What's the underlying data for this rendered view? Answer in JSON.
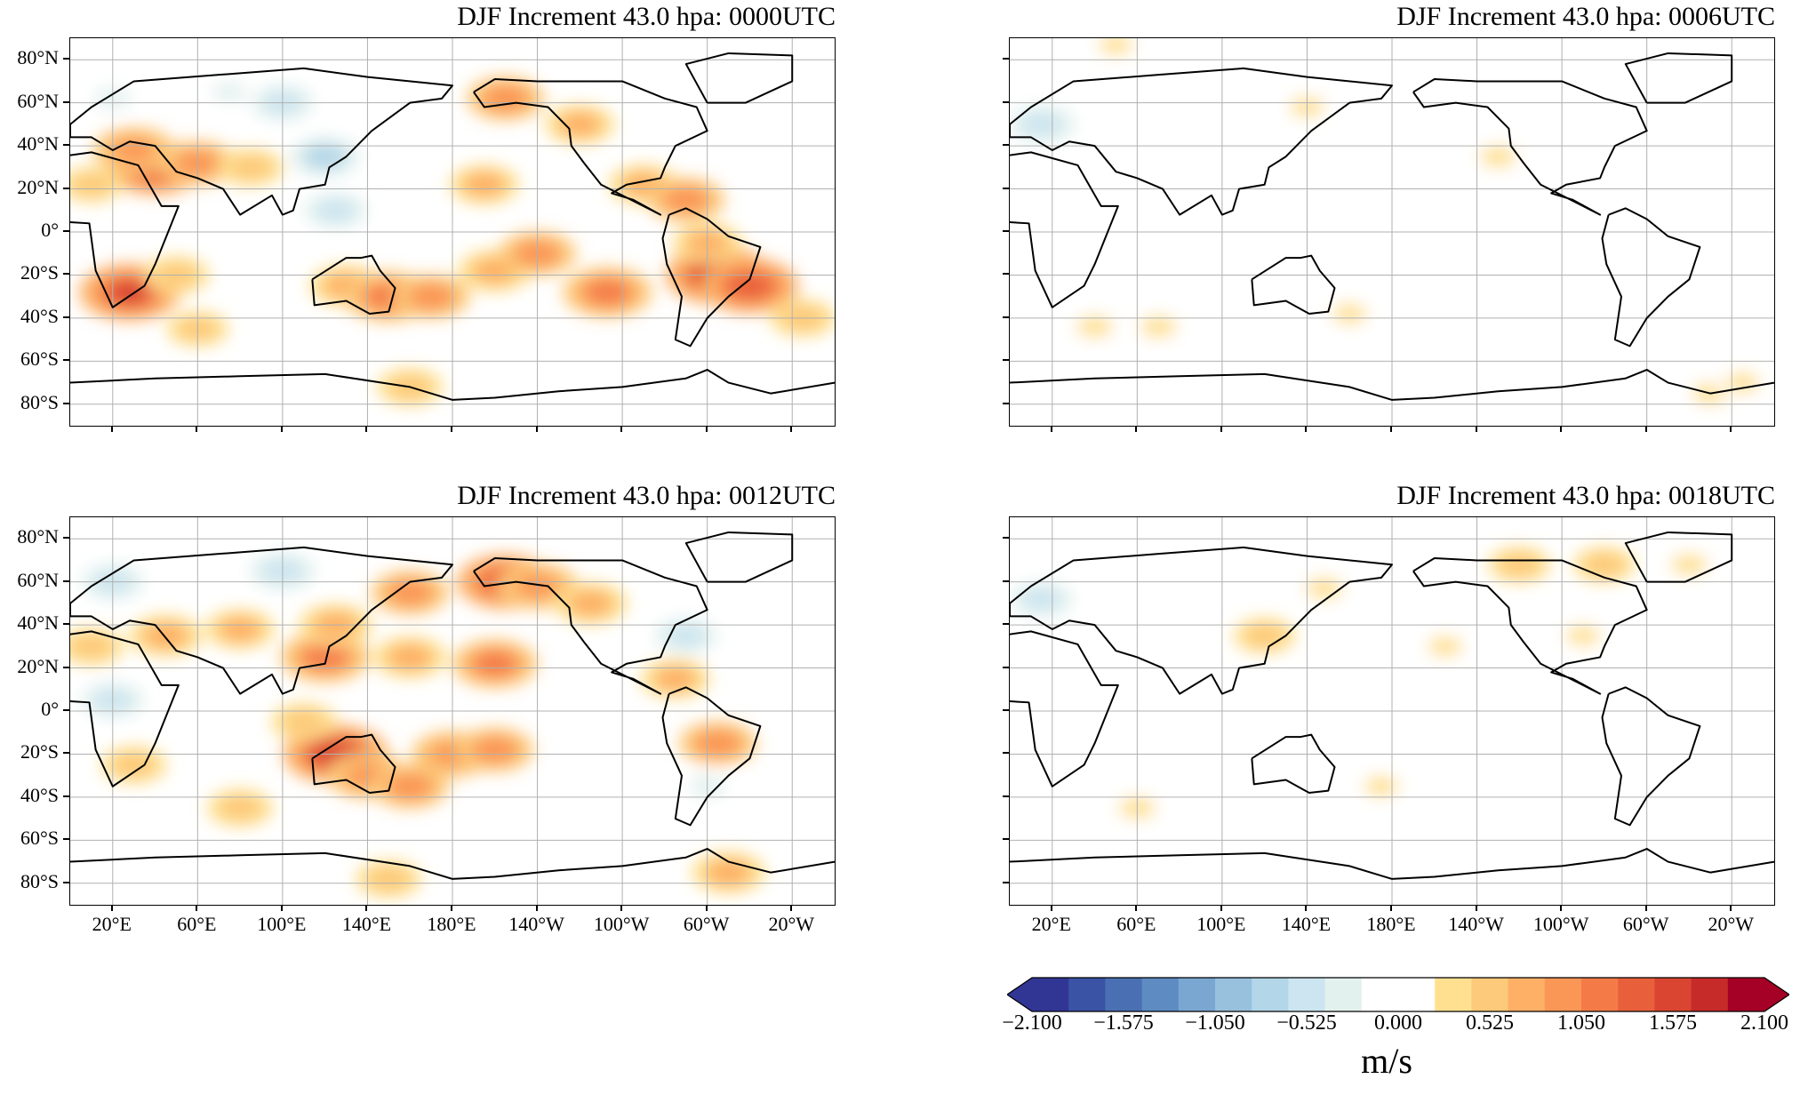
{
  "panels": [
    {
      "title": "DJF Increment 43.0 hpa: 0000UTC",
      "show_lat_labels": true,
      "show_lon_labels": false,
      "blobs": [
        {
          "lon": 40,
          "lat": 30,
          "v": 1.4
        },
        {
          "lon": 30,
          "lat": 38,
          "v": 1.0
        },
        {
          "lon": 60,
          "lat": 32,
          "v": 0.9
        },
        {
          "lon": 85,
          "lat": 30,
          "v": 0.6
        },
        {
          "lon": 10,
          "lat": 22,
          "v": 0.5
        },
        {
          "lon": 28,
          "lat": -28,
          "v": 1.5
        },
        {
          "lon": 50,
          "lat": -20,
          "v": 0.6
        },
        {
          "lon": 130,
          "lat": -25,
          "v": 0.8
        },
        {
          "lon": 150,
          "lat": -30,
          "v": 1.2
        },
        {
          "lon": 170,
          "lat": -30,
          "v": 0.9
        },
        {
          "lon": 200,
          "lat": -18,
          "v": 0.8
        },
        {
          "lon": 220,
          "lat": -10,
          "v": 0.9
        },
        {
          "lon": 253,
          "lat": -28,
          "v": 1.2
        },
        {
          "lon": 305,
          "lat": -20,
          "v": 1.6
        },
        {
          "lon": 320,
          "lat": -25,
          "v": 1.4
        },
        {
          "lon": 300,
          "lat": -5,
          "v": 0.7
        },
        {
          "lon": 270,
          "lat": 22,
          "v": 0.7
        },
        {
          "lon": 290,
          "lat": 15,
          "v": 0.9
        },
        {
          "lon": 205,
          "lat": 62,
          "v": 0.9
        },
        {
          "lon": 240,
          "lat": 50,
          "v": 0.7
        },
        {
          "lon": 195,
          "lat": 22,
          "v": 0.7
        },
        {
          "lon": 345,
          "lat": -40,
          "v": 0.6
        },
        {
          "lon": 160,
          "lat": -72,
          "v": 0.6
        },
        {
          "lon": 60,
          "lat": -45,
          "v": 0.5
        },
        {
          "lon": 120,
          "lat": 35,
          "v": -0.7
        },
        {
          "lon": 100,
          "lat": 60,
          "v": -0.5
        },
        {
          "lon": 125,
          "lat": 10,
          "v": -0.5
        },
        {
          "lon": 20,
          "lat": 62,
          "v": -0.4
        },
        {
          "lon": 75,
          "lat": 65,
          "v": -0.3
        }
      ]
    },
    {
      "title": "DJF Increment 43.0 hpa: 0006UTC",
      "show_lat_labels": false,
      "show_lon_labels": false,
      "blobs": [
        {
          "lon": 15,
          "lat": 50,
          "v": -0.6
        },
        {
          "lon": 40,
          "lat": -44,
          "v": 0.4
        },
        {
          "lon": 70,
          "lat": -44,
          "v": 0.4
        },
        {
          "lon": 160,
          "lat": -38,
          "v": 0.3
        },
        {
          "lon": 230,
          "lat": 35,
          "v": 0.4
        },
        {
          "lon": 330,
          "lat": -75,
          "v": 0.4
        },
        {
          "lon": 345,
          "lat": -70,
          "v": 0.3
        },
        {
          "lon": 50,
          "lat": 87,
          "v": 0.3
        },
        {
          "lon": 140,
          "lat": 58,
          "v": 0.3
        }
      ]
    },
    {
      "title": "DJF Increment 43.0 hpa: 0012UTC",
      "show_lat_labels": true,
      "show_lon_labels": true,
      "blobs": [
        {
          "lon": 205,
          "lat": 60,
          "v": 1.4
        },
        {
          "lon": 220,
          "lat": 58,
          "v": 1.0
        },
        {
          "lon": 245,
          "lat": 50,
          "v": 0.8
        },
        {
          "lon": 160,
          "lat": 55,
          "v": 0.9
        },
        {
          "lon": 120,
          "lat": 25,
          "v": 1.2
        },
        {
          "lon": 125,
          "lat": 40,
          "v": 0.8
        },
        {
          "lon": 45,
          "lat": 35,
          "v": 0.8
        },
        {
          "lon": 80,
          "lat": 38,
          "v": 0.7
        },
        {
          "lon": 160,
          "lat": 25,
          "v": 0.8
        },
        {
          "lon": 200,
          "lat": 22,
          "v": 1.1
        },
        {
          "lon": 125,
          "lat": -20,
          "v": 1.6
        },
        {
          "lon": 140,
          "lat": -30,
          "v": 1.0
        },
        {
          "lon": 160,
          "lat": -35,
          "v": 0.9
        },
        {
          "lon": 180,
          "lat": -20,
          "v": 1.0
        },
        {
          "lon": 200,
          "lat": -18,
          "v": 0.9
        },
        {
          "lon": 305,
          "lat": -15,
          "v": 0.9
        },
        {
          "lon": 285,
          "lat": 15,
          "v": 0.7
        },
        {
          "lon": 30,
          "lat": -25,
          "v": 0.6
        },
        {
          "lon": 80,
          "lat": -45,
          "v": 0.6
        },
        {
          "lon": 310,
          "lat": -75,
          "v": 0.8
        },
        {
          "lon": 150,
          "lat": -78,
          "v": 0.6
        },
        {
          "lon": 10,
          "lat": 30,
          "v": 0.6
        },
        {
          "lon": 110,
          "lat": -5,
          "v": 0.6
        },
        {
          "lon": 100,
          "lat": 65,
          "v": -0.6
        },
        {
          "lon": 20,
          "lat": 60,
          "v": -0.5
        },
        {
          "lon": 20,
          "lat": 5,
          "v": -0.5
        },
        {
          "lon": 290,
          "lat": 35,
          "v": -0.5
        },
        {
          "lon": 300,
          "lat": -35,
          "v": -0.4
        }
      ]
    },
    {
      "title": "DJF Increment 43.0 hpa: 0018UTC",
      "show_lat_labels": false,
      "show_lon_labels": true,
      "blobs": [
        {
          "lon": 240,
          "lat": 68,
          "v": 0.5
        },
        {
          "lon": 280,
          "lat": 68,
          "v": 0.5
        },
        {
          "lon": 320,
          "lat": 68,
          "v": 0.4
        },
        {
          "lon": 148,
          "lat": 57,
          "v": 0.4
        },
        {
          "lon": 120,
          "lat": 35,
          "v": 0.5
        },
        {
          "lon": 205,
          "lat": 30,
          "v": 0.3
        },
        {
          "lon": 60,
          "lat": -45,
          "v": 0.4
        },
        {
          "lon": 15,
          "lat": 52,
          "v": -0.5
        },
        {
          "lon": 175,
          "lat": -35,
          "v": 0.3
        },
        {
          "lon": 270,
          "lat": 35,
          "v": 0.3
        }
      ]
    }
  ],
  "lat_labels": [
    "80°N",
    "60°N",
    "40°N",
    "20°N",
    "0°",
    "20°S",
    "40°S",
    "60°S",
    "80°S"
  ],
  "lon_labels": [
    "20°E",
    "60°E",
    "100°E",
    "140°E",
    "180°E",
    "140°W",
    "100°W",
    "60°W",
    "20°W"
  ],
  "colorbar": {
    "unit": "m/s",
    "tick_labels": [
      "−2.100",
      "−1.575",
      "−1.050",
      "−0.525",
      "0.000",
      "0.525",
      "1.050",
      "1.575",
      "2.100"
    ],
    "levels": [
      -2.1,
      2.1
    ],
    "colors": [
      "#313695",
      "#3a53a4",
      "#4a70b3",
      "#5d8bc2",
      "#7aa7d1",
      "#98c1de",
      "#b3d6e8",
      "#cce5f0",
      "#e3f1ee",
      "#ffffff",
      "#ffffff",
      "#fee090",
      "#fdc97a",
      "#fdb066",
      "#fa9656",
      "#f47b48",
      "#e8603b",
      "#da4531",
      "#c62b2a",
      "#a50026"
    ]
  }
}
